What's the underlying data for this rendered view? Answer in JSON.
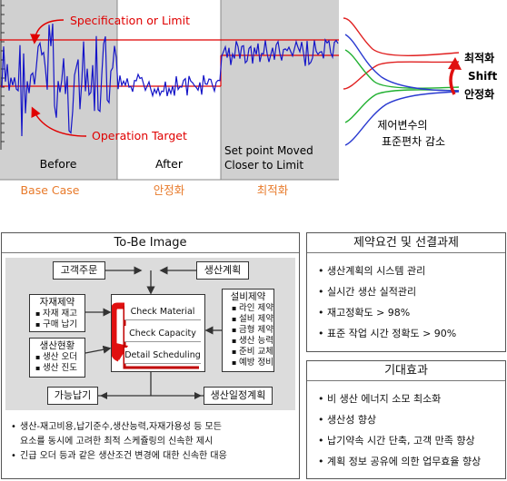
{
  "top_chart": {
    "annotation_spec": "Specification or Limit",
    "annotation_target": "Operation Target",
    "panel_before": "Before",
    "panel_after": "After",
    "panel_moved_line1": "Set point Moved",
    "panel_moved_line2": "Closer to Limit",
    "caption_base": "Base Case",
    "caption_stable": "안정화",
    "caption_optimal": "최적화"
  },
  "dist": {
    "label_optimal": "최적화",
    "label_shift": "Shift",
    "label_stable": "안정화",
    "note_line1": "제어변수의",
    "note_line2": "표준편차 감소"
  },
  "tobe": {
    "title": "To-Be Image",
    "customer_order": "고객주문",
    "production_plan": "생산계획",
    "material_title": "자재제약",
    "material_items": [
      "자재 재고",
      "구매 납기"
    ],
    "status_title": "생산현황",
    "status_items": [
      "생산 오더",
      "생산 진도"
    ],
    "equip_title": "설비제약",
    "equip_items": [
      "라인 제약",
      "설비 제약",
      "금형 제약",
      "생산 능력",
      "준비 교체",
      "예방 정비"
    ],
    "check_material": "Check Material",
    "check_capacity": "Check Capacity",
    "detail_scheduling": "Detail Scheduling",
    "available_date": "가능납기",
    "production_schedule": "생산일정계획",
    "note1_line1": "생산-재고비용,납기준수,생산능력,자재가용성 등 모든",
    "note1_line2": "요소를 동시에 고려한 최적 스케쥴링의 신속한 제시",
    "note2": "긴급 오더 등과 같은 생산조건 변경에 대한 신속한 대응"
  },
  "requirements": {
    "title": "제약요건 및 선결과제",
    "items": [
      "생산계획의 시스템 관리",
      "실시간 생산 실적관리",
      "재고정확도 > 98%",
      "표준 작업 시간 정확도 > 90%"
    ]
  },
  "effects": {
    "title": "기대효과",
    "items": [
      "비 생산 에너지 소모 최소화",
      "생산성 향상",
      "납기약속 시간 단축, 고객 만족 향상",
      "계획 정보 공유에 의한 업무효율 향상"
    ]
  },
  "colors": {
    "limit_line": "#e00000",
    "signal": "#1515c8",
    "panel_gray": "#d0d0d0",
    "caption_orange": "#e87a2a",
    "dist_red": "#e02020",
    "dist_green": "#20b030",
    "dist_blue": "#2a3ad0",
    "arrow_red": "#e01010"
  }
}
